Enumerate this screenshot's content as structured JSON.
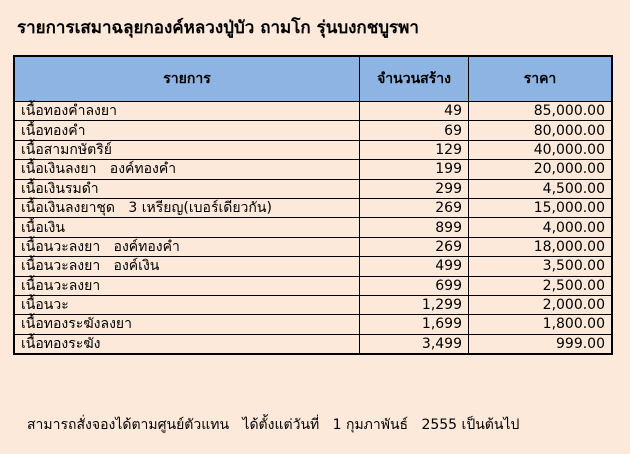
{
  "title": "รายการเสมาฉลุยกองค์หลวงปู่บัว ถามโก รุ่นบงกชบูรพา",
  "table": {
    "headers": [
      "รายการ",
      "จำนวนสร้าง",
      "ราคา"
    ],
    "rows": [
      [
        "เนื้อทองคำลงยา",
        "49",
        "85,000.00"
      ],
      [
        "เนื้อทองคำ",
        "69",
        "80,000.00"
      ],
      [
        "เนื้อสามกษัตริย์",
        "129",
        "40,000.00"
      ],
      [
        "เนื้อเงินลงยา   องค์ทองคำ",
        "199",
        "20,000.00"
      ],
      [
        "เนื้อเงินรมดำ",
        "299",
        "4,500.00"
      ],
      [
        "เนื้อเงินลงยาชุด   3 เหรียญ(เบอร์เดียวกัน)",
        "269",
        "15,000.00"
      ],
      [
        "เนื้อเงิน",
        "899",
        "4,000.00"
      ],
      [
        "เนื้อนวะลงยา   องค์ทองคำ",
        "269",
        "18,000.00"
      ],
      [
        "เนื้อนวะลงยา   องค์เงิน",
        "499",
        "3,500.00"
      ],
      [
        "เนื้อนวะลงยา",
        "699",
        "2,500.00"
      ],
      [
        "เนื้อนวะ",
        "1,299",
        "2,000.00"
      ],
      [
        "เนื้อทองระฆังลงยา",
        "1,699",
        "1,800.00"
      ],
      [
        "เนื้อทองระฆัง",
        "3,499",
        "999.00"
      ]
    ]
  },
  "footer": "สามารถสั่งจองได้ตามศูนย์ตัวแทน   ได้ตั้งแต่วันที่   1 กุมภาพันธ์   2555 เป็นต้นไป",
  "colors": {
    "background": "#fde9d9",
    "header": "#8db4e2"
  }
}
